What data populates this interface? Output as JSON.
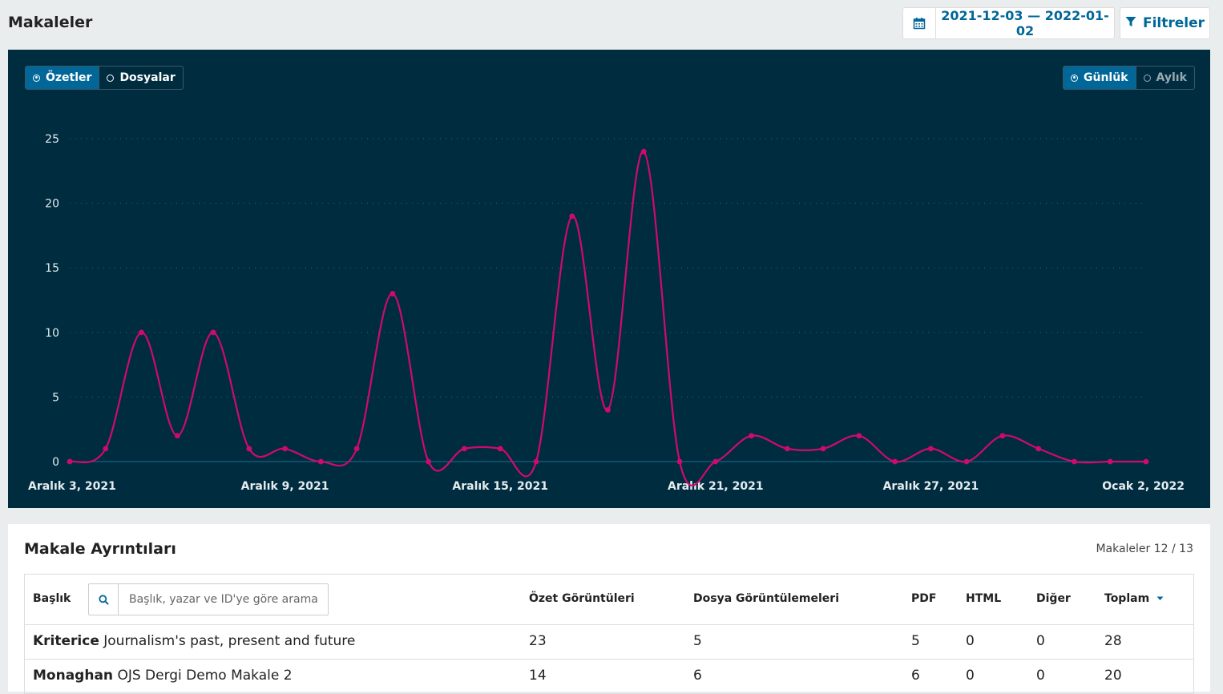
{
  "header": {
    "title": "Makaleler",
    "date_range": "2021-12-03 — 2022-01-02",
    "filters_label": "Filtreler"
  },
  "chart_toggles": {
    "abstracts": "Özetler",
    "files": "Dosyalar",
    "daily": "Günlük",
    "monthly": "Aylık"
  },
  "colors": {
    "panel_bg": "#002c40",
    "line": "#d00a6c",
    "accent": "#006798"
  },
  "chart_data": {
    "type": "line",
    "x": [
      "2021-12-03",
      "2021-12-04",
      "2021-12-05",
      "2021-12-06",
      "2021-12-07",
      "2021-12-08",
      "2021-12-09",
      "2021-12-10",
      "2021-12-11",
      "2021-12-12",
      "2021-12-13",
      "2021-12-14",
      "2021-12-15",
      "2021-12-16",
      "2021-12-17",
      "2021-12-18",
      "2021-12-19",
      "2021-12-20",
      "2021-12-21",
      "2021-12-22",
      "2021-12-23",
      "2021-12-24",
      "2021-12-25",
      "2021-12-26",
      "2021-12-27",
      "2021-12-28",
      "2021-12-29",
      "2021-12-30",
      "2021-12-31",
      "2022-01-01",
      "2022-01-02"
    ],
    "values": [
      0,
      1,
      10,
      2,
      10,
      1,
      1,
      0,
      1,
      13,
      0,
      1,
      1,
      0,
      19,
      4,
      24,
      0,
      0,
      2,
      1,
      1,
      2,
      0,
      1,
      0,
      2,
      1,
      0,
      0,
      0
    ],
    "xticks": [
      "Aralık 3, 2021",
      "Aralık 9, 2021",
      "Aralık 15, 2021",
      "Aralık 21, 2021",
      "Aralık 27, 2021",
      "Ocak 2, 2022"
    ],
    "yticks": [
      "0",
      "5",
      "10",
      "15",
      "20",
      "25"
    ],
    "ylim": [
      0,
      25
    ],
    "grid": true,
    "legend": "none"
  },
  "details": {
    "title": "Makale Ayrıntıları",
    "count_text": "Makaleler 12 / 13",
    "columns": {
      "title": "Başlık",
      "abstract_views": "Özet Görüntüleri",
      "file_views": "Dosya Görüntülemeleri",
      "pdf": "PDF",
      "html": "HTML",
      "other": "Diğer",
      "total": "Toplam"
    },
    "search_placeholder": "Başlık, yazar ve ID'ye göre arama",
    "rows": [
      {
        "author": "Kriterice",
        "title": "Journalism's past, present and future",
        "abstract_views": "23",
        "file_views": "5",
        "pdf": "5",
        "html": "0",
        "other": "0",
        "total": "28"
      },
      {
        "author": "Monaghan",
        "title": "OJS Dergi Demo Makale 2",
        "abstract_views": "14",
        "file_views": "6",
        "pdf": "6",
        "html": "0",
        "other": "0",
        "total": "20"
      }
    ]
  }
}
